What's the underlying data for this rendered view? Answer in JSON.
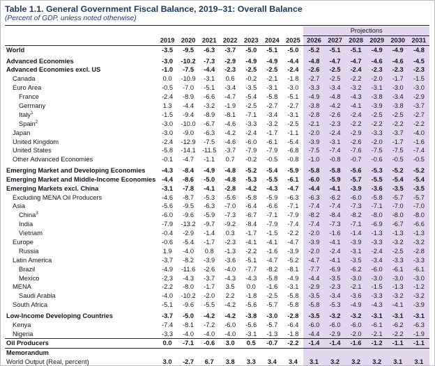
{
  "header": {
    "title": "Table 1.1. General Government Fiscal Balance, 2019–31: Overall Balance",
    "subtitle": "(Percent of GDP, unless noted otherwise)"
  },
  "colors": {
    "title_text": "#1F3864",
    "body_text": "#141420",
    "projection_band": "#E3D7F0",
    "rule": "#222222"
  },
  "table": {
    "projections_label": "Projections",
    "historical_years": [
      "2019",
      "2020",
      "2021",
      "2022",
      "2023",
      "2024",
      "2025"
    ],
    "projection_years": [
      "2026",
      "2027",
      "2028",
      "2029",
      "2030",
      "2031"
    ],
    "rows": [
      {
        "label": "World",
        "indent": 0,
        "bold": true,
        "values": [
          "-3.5",
          "-9.5",
          "-6.3",
          "-3.7",
          "-5.0",
          "-5.1",
          "-5.0",
          "-5.2",
          "-5.1",
          "-5.1",
          "-4.9",
          "-4.9",
          "-4.8"
        ]
      },
      {
        "label": "Advanced Economies",
        "indent": 0,
        "bold": true,
        "gap_above": true,
        "values": [
          "-3.0",
          "-10.2",
          "-7.3",
          "-2.9",
          "-4.9",
          "-4.9",
          "-4.4",
          "-4.8",
          "-4.7",
          "-4.7",
          "-4.6",
          "-4.6",
          "-4.5"
        ]
      },
      {
        "label": "Advanced Economies excl. US",
        "indent": 0,
        "bold": true,
        "values": [
          "-1.0",
          "-7.5",
          "-4.4",
          "-2.3",
          "-2.5",
          "-2.5",
          "-2.4",
          "-2.6",
          "-2.5",
          "-2.4",
          "-2.3",
          "-2.3",
          "-2.3"
        ]
      },
      {
        "label": "Canada",
        "indent": 1,
        "values": [
          "0.0",
          "-10.9",
          "-3.1",
          "0.6",
          "-0.2",
          "-2.1",
          "-1.8",
          "-2.7",
          "-2.5",
          "-2.2",
          "-2.0",
          "-1.7",
          "-1.5"
        ]
      },
      {
        "label": "Euro Area",
        "indent": 1,
        "values": [
          "-0.5",
          "-7.0",
          "-5.1",
          "-3.4",
          "-3.5",
          "-3.1",
          "-3.0",
          "-3.3",
          "-3.4",
          "-3.2",
          "-3.1",
          "-3.0",
          "-3.0"
        ]
      },
      {
        "label": "France",
        "indent": 2,
        "values": [
          "-2.4",
          "-8.9",
          "-6.6",
          "-4.7",
          "-5.4",
          "-5.8",
          "-5.1",
          "-4.9",
          "-4.8",
          "-4.3",
          "-3.8",
          "-3.4",
          "-2.9"
        ]
      },
      {
        "label": "Germany",
        "indent": 2,
        "values": [
          "1.3",
          "-4.4",
          "-3.2",
          "-1.9",
          "-2.5",
          "-2.7",
          "-2.7",
          "-3.8",
          "-4.2",
          "-4.1",
          "-3.9",
          "-3.8",
          "-3.7"
        ]
      },
      {
        "label": "Italy",
        "sup": "1",
        "indent": 2,
        "values": [
          "-1.5",
          "-9.4",
          "-8.9",
          "-8.1",
          "-7.1",
          "-3.4",
          "-3.1",
          "-2.8",
          "-2.6",
          "-2.4",
          "-2.5",
          "-2.5",
          "-2.7"
        ]
      },
      {
        "label": "Spain",
        "sup": "2",
        "indent": 2,
        "values": [
          "-3.0",
          "-10.0",
          "-6.7",
          "-4.6",
          "-3.3",
          "-3.2",
          "-2.5",
          "-2.1",
          "-2.3",
          "-2.2",
          "-2.2",
          "-2.2",
          "-2.2"
        ]
      },
      {
        "label": "Japan",
        "indent": 1,
        "values": [
          "-3.0",
          "-9.0",
          "-6.3",
          "-4.2",
          "-2.4",
          "-1.7",
          "-1.1",
          "-2.0",
          "-2.4",
          "-2.9",
          "-3.3",
          "-3.7",
          "-4.0"
        ]
      },
      {
        "label": "United Kingdom",
        "indent": 1,
        "values": [
          "-2.4",
          "-12.9",
          "-7.5",
          "-4.6",
          "-6.0",
          "-6.1",
          "-5.4",
          "-3.9",
          "-3.1",
          "-2.6",
          "-2.0",
          "-1.7",
          "-1.6"
        ]
      },
      {
        "label": "United States",
        "indent": 1,
        "values": [
          "-5.8",
          "-14.1",
          "-11.5",
          "-3.7",
          "-7.9",
          "-7.9",
          "-6.8",
          "-7.5",
          "-7.4",
          "-7.6",
          "-7.5",
          "-7.5",
          "-7.4"
        ]
      },
      {
        "label": "Other Advanced Economies",
        "indent": 1,
        "values": [
          "-0.1",
          "-4.7",
          "-1.1",
          "0.7",
          "-0.2",
          "-0.5",
          "-0.8",
          "-1.0",
          "-0.8",
          "-0.7",
          "-0.6",
          "-0.5",
          "-0.5"
        ]
      },
      {
        "label": "Emerging Market and Developing Economies",
        "indent": 0,
        "bold": true,
        "gap_above": true,
        "values": [
          "-4.3",
          "-8.4",
          "-4.9",
          "-4.8",
          "-5.2",
          "-5.4",
          "-5.9",
          "-5.8",
          "-5.8",
          "-5.6",
          "-5.3",
          "-5.2",
          "-5.2"
        ]
      },
      {
        "label": "Emerging Market and Middle-Income Economies",
        "indent": 0,
        "bold": true,
        "values": [
          "-4.4",
          "-8.6",
          "-5.0",
          "-4.8",
          "-5.3",
          "-5.5",
          "-6.1",
          "-6.0",
          "-5.9",
          "-5.7",
          "-5.5",
          "-5.4",
          "-5.4"
        ]
      },
      {
        "label": "Emerging Markets excl. China",
        "indent": 0,
        "bold": true,
        "values": [
          "-3.1",
          "-7.8",
          "-4.1",
          "-2.8",
          "-4.2",
          "-4.3",
          "-4.7",
          "-4.4",
          "-4.1",
          "-3.9",
          "-3.6",
          "-3.5",
          "-3.5"
        ]
      },
      {
        "label": "Excluding MENA Oil Producers",
        "indent": 1,
        "values": [
          "-4.6",
          "-8.7",
          "-5.3",
          "-5.6",
          "-5.8",
          "-5.9",
          "-6.3",
          "-6.3",
          "-6.2",
          "-6.0",
          "-5.8",
          "-5.7",
          "-5.7"
        ]
      },
      {
        "label": "Asia",
        "indent": 1,
        "values": [
          "-5.6",
          "-9.5",
          "-6.3",
          "-7.0",
          "-6.4",
          "-6.6",
          "-7.1",
          "-7.4",
          "-7.4",
          "-7.3",
          "-7.1",
          "-7.0",
          "-7.0"
        ]
      },
      {
        "label": "China",
        "sup": "3",
        "indent": 2,
        "values": [
          "-6.0",
          "-9.6",
          "-5.9",
          "-7.3",
          "-6.7",
          "-7.1",
          "-7.9",
          "-8.2",
          "-8.4",
          "-8.2",
          "-8.0",
          "-8.0",
          "-8.0"
        ]
      },
      {
        "label": "India",
        "indent": 2,
        "values": [
          "-7.9",
          "-13.2",
          "-9.7",
          "-9.2",
          "-8.4",
          "-7.9",
          "-7.4",
          "-7.4",
          "-7.3",
          "-7.1",
          "-6.9",
          "-6.7",
          "-6.6"
        ]
      },
      {
        "label": "Vietnam",
        "indent": 2,
        "values": [
          "-0.4",
          "-2.9",
          "-1.4",
          "0.3",
          "-1.7",
          "-1.5",
          "-2.2",
          "-2.0",
          "-1.6",
          "-1.4",
          "-1.3",
          "-1.3",
          "-1.3"
        ]
      },
      {
        "label": "Europe",
        "indent": 1,
        "values": [
          "-0.6",
          "-5.4",
          "-1.7",
          "-2.3",
          "-4.1",
          "-4.1",
          "-4.7",
          "-3.9",
          "-4.1",
          "-3.9",
          "-3.3",
          "-3.2",
          "-3.2"
        ]
      },
      {
        "label": "Russia",
        "indent": 2,
        "values": [
          "1.9",
          "-4.0",
          "0.8",
          "-1.3",
          "-2.2",
          "-1.6",
          "-3.9",
          "-2.0",
          "-2.4",
          "-3.1",
          "-2.4",
          "-2.5",
          "-2.8"
        ]
      },
      {
        "label": "Latin America",
        "indent": 1,
        "values": [
          "-3.7",
          "-8.2",
          "-3.9",
          "-3.6",
          "-5.1",
          "-4.7",
          "-5.2",
          "-4.7",
          "-4.1",
          "-3.5",
          "-3.4",
          "-3.3",
          "-3.3"
        ]
      },
      {
        "label": "Brazil",
        "indent": 2,
        "values": [
          "-4.9",
          "-11.6",
          "-2.6",
          "-4.0",
          "-7.7",
          "-8.2",
          "-8.1",
          "-7.7",
          "-6.9",
          "-6.2",
          "-6.0",
          "-6.1",
          "-6.1"
        ]
      },
      {
        "label": "Mexico",
        "indent": 2,
        "values": [
          "-2.3",
          "-4.3",
          "-3.7",
          "-4.3",
          "-4.3",
          "-5.8",
          "-4.9",
          "-4.4",
          "-3.5",
          "-3.0",
          "-3.0",
          "-3.0",
          "-3.0"
        ]
      },
      {
        "label": "MENA",
        "indent": 1,
        "values": [
          "-2.2",
          "-8.0",
          "-1.7",
          "3.5",
          "0.0",
          "-1.6",
          "-3.1",
          "-2.9",
          "-2.3",
          "-2.1",
          "-1.5",
          "-1.3",
          "-1.2"
        ]
      },
      {
        "label": "Saudi Arabia",
        "indent": 2,
        "values": [
          "-4.0",
          "-10.2",
          "-2.0",
          "2.2",
          "-1.8",
          "-2.5",
          "-5.8",
          "-3.5",
          "-3.4",
          "-3.6",
          "-3.3",
          "-3.2",
          "-3.2"
        ]
      },
      {
        "label": "South Africa",
        "indent": 1,
        "values": [
          "-5.1",
          "-9.6",
          "-5.5",
          "-4.2",
          "-5.6",
          "-5.7",
          "-5.8",
          "-5.8",
          "-5.3",
          "-4.9",
          "-4.3",
          "-4.1",
          "-3.9"
        ]
      },
      {
        "label": "Low-Income Developing Countries",
        "indent": 0,
        "bold": true,
        "gap_above": true,
        "values": [
          "-3.7",
          "-5.0",
          "-4.2",
          "-4.2",
          "-3.8",
          "-3.0",
          "-2.8",
          "-3.5",
          "-3.2",
          "-3.2",
          "-3.1",
          "-3.1",
          "-3.1"
        ]
      },
      {
        "label": "Kenya",
        "indent": 1,
        "values": [
          "-7.4",
          "-8.1",
          "-7.2",
          "-6.0",
          "-5.6",
          "-5.7",
          "-6.4",
          "-6.0",
          "-6.0",
          "-6.0",
          "-6.1",
          "-6.2",
          "-6.3"
        ]
      },
      {
        "label": "Nigeria",
        "indent": 1,
        "values": [
          "-3.3",
          "-4.0",
          "-4.0",
          "-4.0",
          "-3.1",
          "-1.3",
          "-1.8",
          "-4.4",
          "-2.9",
          "-2.0",
          "-2.1",
          "-2.2",
          "-1.9"
        ]
      },
      {
        "label": "Oil Producers",
        "indent": 0,
        "bold": true,
        "rule_above": true,
        "values": [
          "0.0",
          "-7.1",
          "-0.6",
          "3.0",
          "0.5",
          "-0.7",
          "-2.2",
          "-1.4",
          "-1.4",
          "-1.6",
          "-1.2",
          "-1.1",
          "-1.1"
        ]
      },
      {
        "label": "Memorandum",
        "indent": 0,
        "bold": true,
        "rule_above": true,
        "values": []
      },
      {
        "label": "World Output (Real, percent)",
        "indent": 0,
        "bold_values": true,
        "values": [
          "3.0",
          "-2.7",
          "6.7",
          "3.8",
          "3.3",
          "3.4",
          "3.4",
          "3.1",
          "3.2",
          "3.2",
          "3.2",
          "3.1",
          "3.1"
        ]
      }
    ]
  }
}
